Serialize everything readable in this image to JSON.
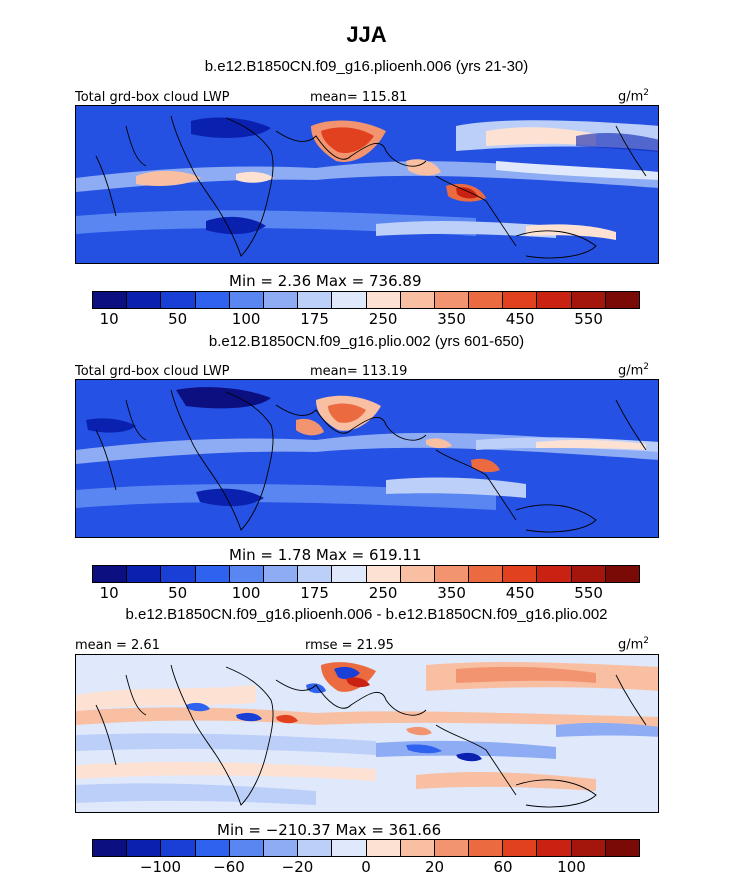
{
  "figure": {
    "season": "JJA",
    "units": "g/m",
    "units_sup": "2"
  },
  "panels": [
    {
      "title": "b.e12.B1850CN.f09_g16.plioenh.006 (yrs 21-30)",
      "field_label": "Total grd-box cloud LWP",
      "left_stat": "",
      "mean_label": "mean= 115.81",
      "minmax_label": "Min =    2.36  Max = 736.89",
      "colorbar_ticks": [
        "10",
        "50",
        "100",
        "175",
        "250",
        "350",
        "450",
        "550"
      ]
    },
    {
      "title": "b.e12.B1850CN.f09_g16.plio.002 (yrs 601-650)",
      "field_label": "Total grd-box cloud LWP",
      "left_stat": "",
      "mean_label": "mean= 113.19",
      "minmax_label": "Min =    1.78  Max = 619.11",
      "colorbar_ticks": [
        "10",
        "50",
        "100",
        "175",
        "250",
        "350",
        "450",
        "550"
      ]
    },
    {
      "title": "b.e12.B1850CN.f09_g16.plioenh.006 - b.e12.B1850CN.f09_g16.plio.002",
      "field_label": "",
      "left_stat": "mean =   2.61",
      "mean_label": "rmse =  21.95",
      "minmax_label": "Min = −210.37  Max = 361.66",
      "colorbar_ticks": [
        "−100",
        "−60",
        "−20",
        "0",
        "20",
        "60",
        "100"
      ]
    }
  ],
  "chart_data": [
    {
      "type": "heatmap",
      "title": "b.e12.B1850CN.f09_g16.plioenh.006 (yrs 21-30)",
      "variable": "Total grd-box cloud LWP",
      "units": "g/m2",
      "mean": 115.81,
      "min": 2.36,
      "max": 736.89,
      "colorbar_levels": [
        10,
        50,
        100,
        175,
        250,
        350,
        450,
        550
      ]
    },
    {
      "type": "heatmap",
      "title": "b.e12.B1850CN.f09_g16.plio.002 (yrs 601-650)",
      "variable": "Total grd-box cloud LWP",
      "units": "g/m2",
      "mean": 113.19,
      "min": 1.78,
      "max": 619.11,
      "colorbar_levels": [
        10,
        50,
        100,
        175,
        250,
        350,
        450,
        550
      ]
    },
    {
      "type": "heatmap",
      "title": "b.e12.B1850CN.f09_g16.plioenh.006 - b.e12.B1850CN.f09_g16.plio.002",
      "units": "g/m2",
      "mean": 2.61,
      "rmse": 21.95,
      "min": -210.37,
      "max": 361.66,
      "colorbar_levels": [
        -100,
        -60,
        -20,
        0,
        20,
        60,
        100
      ]
    }
  ],
  "colors": {
    "lwp_scale": [
      "#0b0f80",
      "#0a21b0",
      "#1a3fd6",
      "#2f62ee",
      "#5a86f2",
      "#8eacf4",
      "#bccff8",
      "#dfe9fb",
      "#fde2d4",
      "#f8bfa3",
      "#f29470",
      "#ec6a40",
      "#e1411f",
      "#c92212",
      "#a4150b",
      "#7a0a05"
    ],
    "diff_scale": [
      "#0b0f80",
      "#0a21b0",
      "#1a3fd6",
      "#2f62ee",
      "#5a86f2",
      "#8eacf4",
      "#bccff8",
      "#dfe9fb",
      "#fde2d4",
      "#f8bfa3",
      "#f29470",
      "#ec6a40",
      "#e1411f",
      "#c92212",
      "#a4150b",
      "#7a0a05"
    ]
  }
}
